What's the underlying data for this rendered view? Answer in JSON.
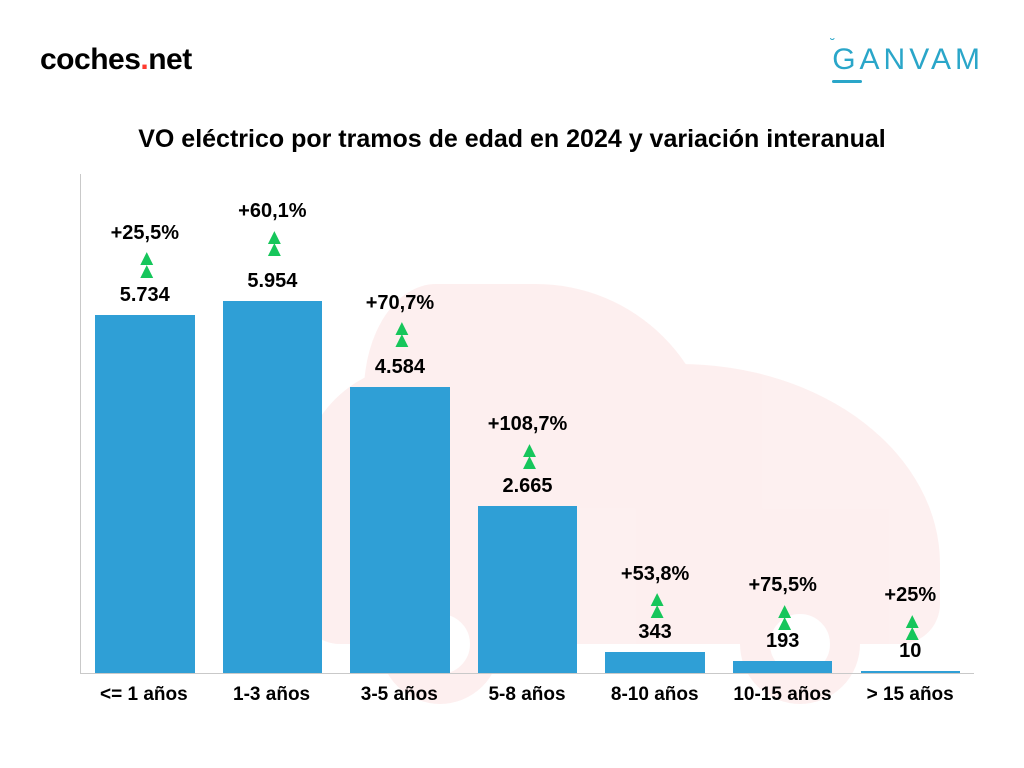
{
  "logos": {
    "left_part1": "coches",
    "left_part2": ".",
    "left_part3": "net",
    "right": "GANVAM"
  },
  "title": "VO eléctrico por tramos de edad en 2024 y variación interanual",
  "chart": {
    "type": "bar",
    "bar_color": "#2f9fd6",
    "arrow_color": "#16c65b",
    "axis_color": "#c9c9c9",
    "background_color": "#ffffff",
    "text_color": "#000000",
    "title_fontsize": 25,
    "label_fontsize": 20,
    "xlabel_fontsize": 19,
    "bar_width_ratio": 0.78,
    "y_max": 8000,
    "categories": [
      "<= 1 años",
      "1-3 años",
      "3-5 años",
      "5-8 años",
      "8-10 años",
      "10-15 años",
      "> 15 años"
    ],
    "values": [
      5734,
      5954,
      4584,
      2665,
      343,
      193,
      10
    ],
    "value_labels": [
      "5.734",
      "5.954",
      "4.584",
      "2.665",
      "343",
      "193",
      "10"
    ],
    "pct_labels": [
      "+25,5%",
      "+60,1%",
      "+70,7%",
      "+108,7%",
      "+53,8%",
      "+75,5%",
      "+25%"
    ],
    "car_bg_color": "#f5a5a5",
    "car_bg_opacity": 0.17
  }
}
